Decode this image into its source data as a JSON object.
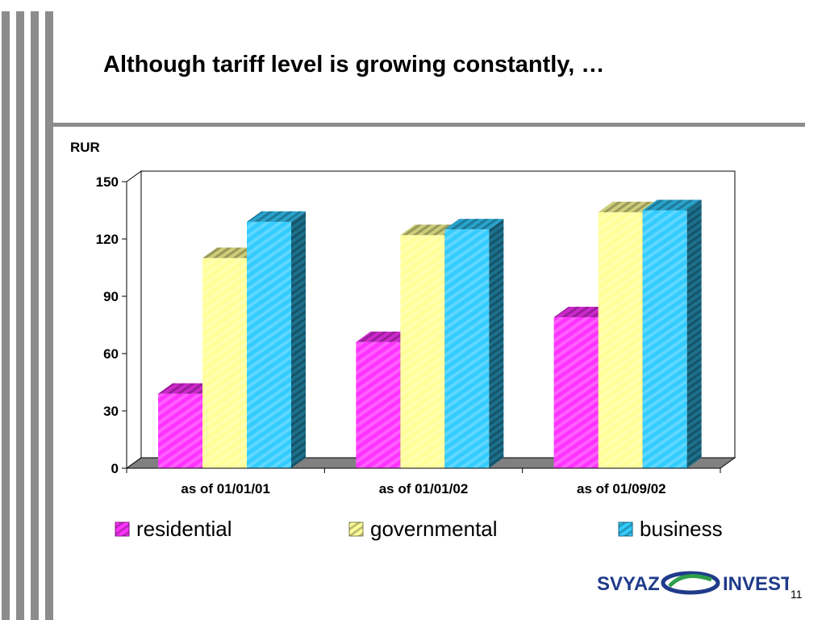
{
  "slide": {
    "title": "Although tariff level is growing constantly, …",
    "page_number": "11",
    "logo": {
      "left_text": "SVYAZ",
      "right_text": "INVEST"
    }
  },
  "chart_data": {
    "type": "bar",
    "ylabel": "RUR",
    "categories": [
      "as of  01/01/01",
      "as of  01/01/02",
      "as of  01/09/02"
    ],
    "series": [
      {
        "name": "residential",
        "values": [
          39,
          66,
          79
        ],
        "color": "#ff33ff"
      },
      {
        "name": "governmental",
        "values": [
          110,
          122,
          134
        ],
        "color": "#ffff99"
      },
      {
        "name": "business",
        "values": [
          129,
          125,
          135
        ],
        "color": "#33ccff"
      }
    ],
    "ylim": [
      0,
      150
    ],
    "yticks": [
      0,
      30,
      60,
      90,
      120,
      150
    ],
    "grid": false,
    "legend": "bottom"
  }
}
